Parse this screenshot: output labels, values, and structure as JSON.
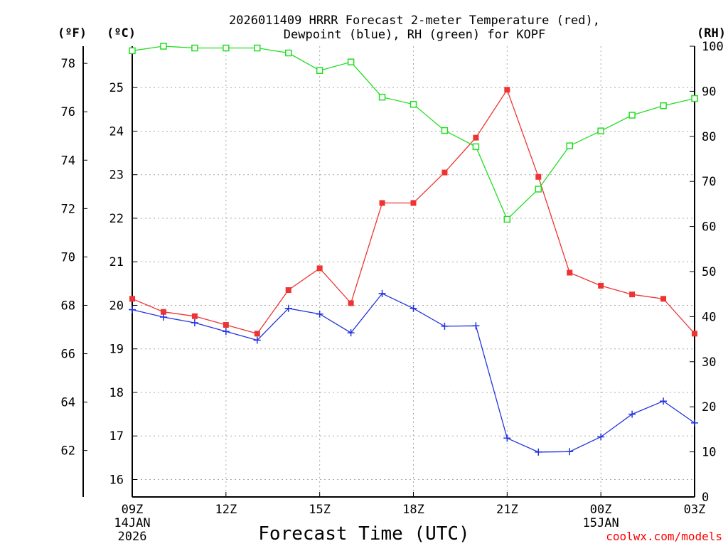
{
  "chart_data": {
    "type": "line",
    "title_line1": "2026011409 HRRR Forecast 2-meter Temperature (red),",
    "title_line2": "Dewpoint (blue), RH (green) for KOPF",
    "xlabel": "Forecast Time (UTC)",
    "credit": "coolwx.com/models",
    "units": {
      "fahrenheit": "(ºF)",
      "celsius": "(ºC)",
      "rh": "(RH)"
    },
    "x_hours": [
      0,
      1,
      2,
      3,
      4,
      5,
      6,
      7,
      8,
      9,
      10,
      11,
      12,
      13,
      14,
      15,
      16,
      17,
      18
    ],
    "x_ticks": [
      {
        "hour": 0,
        "label": "09Z",
        "sub1": "14JAN",
        "sub2": "2026"
      },
      {
        "hour": 3,
        "label": "12Z",
        "sub1": "",
        "sub2": ""
      },
      {
        "hour": 6,
        "label": "15Z",
        "sub1": "",
        "sub2": ""
      },
      {
        "hour": 9,
        "label": "18Z",
        "sub1": "",
        "sub2": ""
      },
      {
        "hour": 12,
        "label": "21Z",
        "sub1": "",
        "sub2": ""
      },
      {
        "hour": 15,
        "label": "00Z",
        "sub1": "15JAN",
        "sub2": ""
      },
      {
        "hour": 18,
        "label": "03Z",
        "sub1": "",
        "sub2": ""
      }
    ],
    "celsius_range": [
      15.6,
      25.95
    ],
    "celsius_ticks": [
      "16",
      "17",
      "18",
      "19",
      "20",
      "21",
      "22",
      "23",
      "24",
      "25"
    ],
    "fahrenheit_ticks": [
      "62",
      "64",
      "66",
      "68",
      "70",
      "72",
      "74",
      "76",
      "78"
    ],
    "rh_range": [
      0,
      100
    ],
    "rh_ticks": [
      "0",
      "10",
      "20",
      "30",
      "40",
      "50",
      "60",
      "70",
      "80",
      "90",
      "100"
    ],
    "series": [
      {
        "name": "Temperature",
        "color": "#ee3333",
        "marker": "filled-square",
        "axis": "celsius",
        "values": [
          20.15,
          19.85,
          19.75,
          19.55,
          19.35,
          20.35,
          20.85,
          20.05,
          22.35,
          22.35,
          23.05,
          23.85,
          24.95,
          22.95,
          20.75,
          20.45,
          20.25,
          20.15,
          19.35
        ]
      },
      {
        "name": "Dewpoint",
        "color": "#2233dd",
        "marker": "plus",
        "axis": "celsius",
        "values": [
          19.9,
          19.73,
          19.6,
          19.4,
          19.2,
          19.93,
          19.8,
          19.37,
          20.27,
          19.93,
          19.52,
          19.53,
          16.95,
          16.63,
          16.64,
          16.98,
          17.5,
          17.8,
          17.3
        ]
      },
      {
        "name": "RH",
        "color": "#22dd22",
        "marker": "open-square",
        "axis": "rh",
        "values": [
          99,
          100,
          99.6,
          99.6,
          99.6,
          98.5,
          94.6,
          96.5,
          88.7,
          87.1,
          81.3,
          77.7,
          61.6,
          68.3,
          77.9,
          81.2,
          84.7,
          86.8,
          88.4
        ]
      }
    ]
  }
}
